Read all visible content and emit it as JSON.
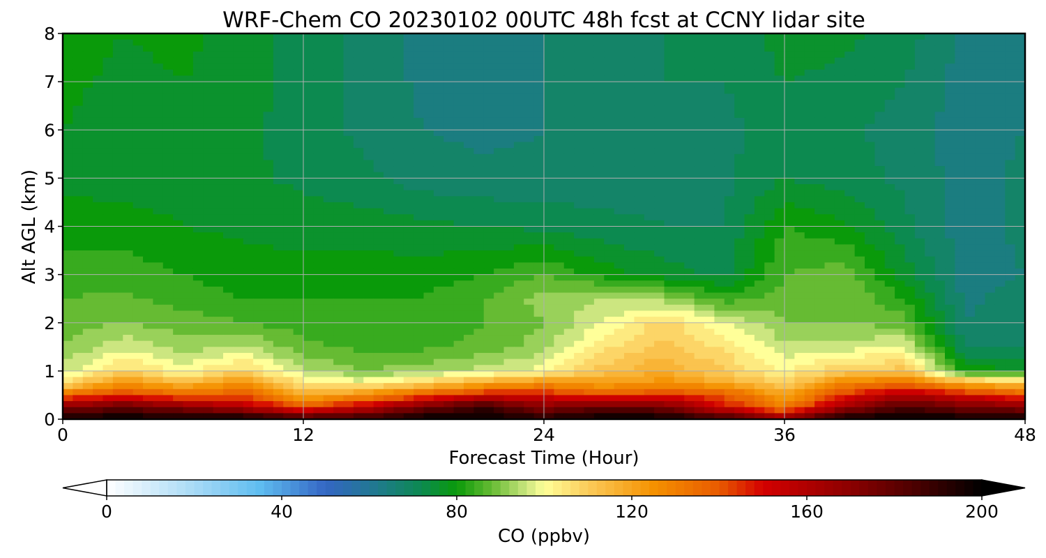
{
  "chart_data": {
    "type": "heatmap",
    "title": "WRF-Chem CO  20230102 00UTC 48h fcst at CCNY lidar site",
    "xlabel": "Forecast Time (Hour)",
    "ylabel": "Alt AGL (km)",
    "xlim": [
      0,
      48
    ],
    "ylim": [
      0,
      8
    ],
    "xticks": [
      "0",
      "12",
      "24",
      "36",
      "48"
    ],
    "yticks": [
      "0",
      "1",
      "2",
      "3",
      "4",
      "5",
      "6",
      "7",
      "8"
    ],
    "grid": true,
    "colorbar": {
      "label": "CO  (ppbv)",
      "range": [
        0,
        200
      ],
      "ticks": [
        "0",
        "40",
        "80",
        "120",
        "160",
        "200"
      ],
      "extend": "both",
      "stops": [
        {
          "value": 0,
          "color": "#ffffff"
        },
        {
          "value": 20,
          "color": "#a8daf6"
        },
        {
          "value": 35,
          "color": "#5fbdf0"
        },
        {
          "value": 50,
          "color": "#3466c4"
        },
        {
          "value": 62,
          "color": "#1f7a8c"
        },
        {
          "value": 72,
          "color": "#0c8a50"
        },
        {
          "value": 80,
          "color": "#0a9a0a"
        },
        {
          "value": 88,
          "color": "#66bb33"
        },
        {
          "value": 96,
          "color": "#cce680"
        },
        {
          "value": 100,
          "color": "#ffff99"
        },
        {
          "value": 110,
          "color": "#fbcb5a"
        },
        {
          "value": 125,
          "color": "#f59100"
        },
        {
          "value": 140,
          "color": "#e85a00"
        },
        {
          "value": 150,
          "color": "#d40000"
        },
        {
          "value": 170,
          "color": "#8b0000"
        },
        {
          "value": 185,
          "color": "#4a0000"
        },
        {
          "value": 200,
          "color": "#000000"
        }
      ]
    },
    "x_hours": [
      0,
      3,
      6,
      9,
      12,
      15,
      18,
      21,
      24,
      27,
      30,
      33,
      36,
      39,
      42,
      45,
      48
    ],
    "y_km": [
      0,
      0.25,
      0.5,
      0.75,
      1,
      1.5,
      2,
      2.5,
      3,
      4,
      5,
      6,
      7,
      8
    ],
    "values": [
      [
        200,
        200,
        200,
        200,
        190,
        192,
        200,
        200,
        195,
        200,
        200,
        190,
        170,
        200,
        200,
        200,
        200
      ],
      [
        170,
        180,
        170,
        160,
        140,
        155,
        175,
        190,
        170,
        180,
        175,
        150,
        130,
        165,
        185,
        175,
        170
      ],
      [
        135,
        145,
        135,
        140,
        118,
        125,
        140,
        150,
        150,
        140,
        145,
        140,
        120,
        145,
        160,
        150,
        140
      ],
      [
        105,
        125,
        115,
        125,
        105,
        100,
        108,
        118,
        125,
        120,
        125,
        118,
        108,
        128,
        135,
        118,
        110
      ],
      [
        95,
        108,
        100,
        108,
        94,
        90,
        92,
        96,
        100,
        112,
        118,
        110,
        102,
        110,
        112,
        80,
        78
      ],
      [
        90,
        97,
        92,
        95,
        87,
        85,
        85,
        87,
        92,
        105,
        112,
        105,
        95,
        96,
        98,
        70,
        70
      ],
      [
        88,
        90,
        88,
        86,
        84,
        84,
        84,
        86,
        90,
        98,
        108,
        98,
        90,
        90,
        88,
        66,
        68
      ],
      [
        86,
        87,
        84,
        82,
        82,
        82,
        82,
        86,
        92,
        94,
        92,
        84,
        88,
        90,
        82,
        65,
        68
      ],
      [
        84,
        84,
        82,
        80,
        80,
        80,
        80,
        82,
        86,
        80,
        76,
        73,
        86,
        88,
        76,
        64,
        66
      ],
      [
        80,
        80,
        78,
        77,
        76,
        76,
        75,
        74,
        73,
        71,
        70,
        70,
        82,
        79,
        71,
        64,
        67
      ],
      [
        77,
        76,
        76,
        75,
        73,
        71,
        68,
        67,
        67,
        68,
        69,
        69,
        74,
        72,
        69,
        64,
        67
      ],
      [
        78,
        76,
        77,
        75,
        72,
        69,
        66,
        65,
        66,
        68,
        69,
        69,
        72,
        71,
        68,
        64,
        66
      ],
      [
        79,
        77,
        78,
        76,
        72,
        69,
        65,
        64,
        66,
        68,
        70,
        70,
        74,
        73,
        70,
        64,
        66
      ],
      [
        80,
        78,
        79,
        76,
        72,
        69,
        64,
        63,
        66,
        68,
        70,
        71,
        76,
        75,
        72,
        65,
        66
      ]
    ]
  }
}
